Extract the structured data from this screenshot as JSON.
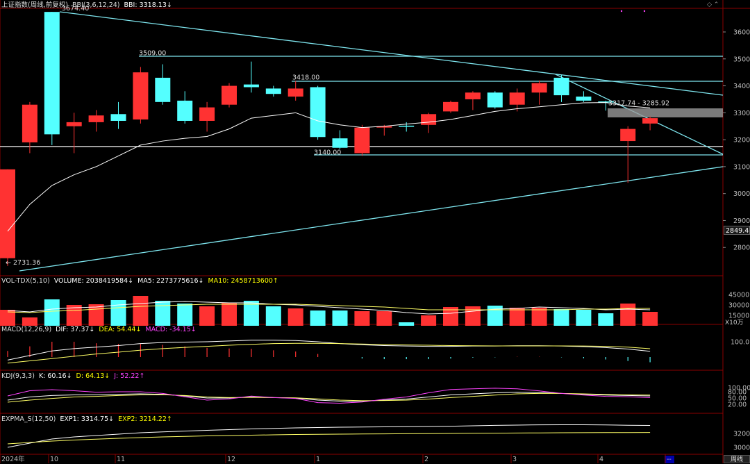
{
  "main_header": {
    "symbol": "上证指数(周线,前复权)",
    "indicator": "BBI(3,6,12,24)",
    "value": "BBI: 3318.13↓"
  },
  "vol_header": {
    "name": "VOL-TDX(5,10)",
    "volume": "VOLUME: 2038419584↓",
    "ma5": "MA5: 2273775616↓",
    "ma10": "MA10: 2458713600↑"
  },
  "macd_header": {
    "name": "MACD(12,26,9)",
    "dif": "DIF: 37.37↓",
    "dea": "DEA: 54.44↓",
    "macd": "MACD: -34.15↓"
  },
  "kdj_header": {
    "name": "KDJ(9,3,3)",
    "k": "K: 60.16↓",
    "d": "D: 64.13↓",
    "j": "J: 52.22↑"
  },
  "expma_header": {
    "name": "EXPMA_S(12,50)",
    "exp1": "EXP1: 3314.75↓",
    "exp2": "EXP2: 3214.22↑"
  },
  "last_price_tag": "2849.4",
  "vol_unit": "X10万",
  "period_button": "周线",
  "colors": {
    "up": "#ff3232",
    "down": "#54ffff",
    "bbi": "#ffffff",
    "trend": "#7fe7f0",
    "ma10": "#ffff66",
    "j": "#ff44ff",
    "grid": "#8b0000"
  },
  "chart_data": {
    "type": "candlestick",
    "price_axis": {
      "ticks": [
        3600,
        3500,
        3400,
        3300,
        3200,
        3100,
        3000,
        2900,
        2800
      ],
      "range": [
        2700,
        3700
      ]
    },
    "x_labels": [
      "2024年",
      "10",
      "11",
      "12",
      "1",
      "2",
      "3",
      "4",
      "--"
    ],
    "candles": [
      {
        "o": 2760,
        "c": 3090,
        "h": 3090,
        "l": 2731.36
      },
      {
        "o": 3190,
        "c": 3330,
        "h": 3340,
        "l": 3150
      },
      {
        "o": 3674.4,
        "c": 3220,
        "h": 3674.4,
        "l": 3180
      },
      {
        "o": 3250,
        "c": 3265,
        "h": 3300,
        "l": 3150
      },
      {
        "o": 3265,
        "c": 3290,
        "h": 3310,
        "l": 3230
      },
      {
        "o": 3295,
        "c": 3270,
        "h": 3340,
        "l": 3240
      },
      {
        "o": 3275,
        "c": 3450,
        "h": 3470,
        "l": 3260
      },
      {
        "o": 3430,
        "c": 3340,
        "h": 3480,
        "l": 3330
      },
      {
        "o": 3345,
        "c": 3270,
        "h": 3380,
        "l": 3260
      },
      {
        "o": 3270,
        "c": 3320,
        "h": 3340,
        "l": 3230
      },
      {
        "o": 3330,
        "c": 3400,
        "h": 3410,
        "l": 3320
      },
      {
        "o": 3405,
        "c": 3395,
        "h": 3490,
        "l": 3375
      },
      {
        "o": 3390,
        "c": 3370,
        "h": 3400,
        "l": 3360
      },
      {
        "o": 3360,
        "c": 3390,
        "h": 3418,
        "l": 3345
      },
      {
        "o": 3395,
        "c": 3210,
        "h": 3400,
        "l": 3200
      },
      {
        "o": 3205,
        "c": 3170,
        "h": 3235,
        "l": 3165
      },
      {
        "o": 3150,
        "c": 3245,
        "h": 3255,
        "l": 3140
      },
      {
        "o": 3245,
        "c": 3250,
        "h": 3255,
        "l": 3215
      },
      {
        "o": 3252,
        "c": 3248,
        "h": 3265,
        "l": 3230
      },
      {
        "o": 3255,
        "c": 3295,
        "h": 3300,
        "l": 3225
      },
      {
        "o": 3305,
        "c": 3340,
        "h": 3345,
        "l": 3300
      },
      {
        "o": 3350,
        "c": 3375,
        "h": 3380,
        "l": 3310
      },
      {
        "o": 3375,
        "c": 3320,
        "h": 3380,
        "l": 3315
      },
      {
        "o": 3330,
        "c": 3375,
        "h": 3390,
        "l": 3305
      },
      {
        "o": 3375,
        "c": 3410,
        "h": 3420,
        "l": 3330
      },
      {
        "o": 3430,
        "c": 3365,
        "h": 3440,
        "l": 3340
      },
      {
        "o": 3360,
        "c": 3345,
        "h": 3380,
        "l": 3340
      },
      {
        "o": 3342,
        "c": 3340,
        "h": 3345,
        "l": 3308
      },
      {
        "o": 3195,
        "c": 3240,
        "h": 3250,
        "l": 3040
      },
      {
        "o": 3260,
        "c": 3280,
        "h": 3285.92,
        "l": 3235
      }
    ],
    "bbi": [
      2860,
      2960,
      3030,
      3070,
      3100,
      3140,
      3180,
      3195,
      3205,
      3212,
      3240,
      3280,
      3290,
      3300,
      3270,
      3255,
      3245,
      3250,
      3258,
      3265,
      3275,
      3290,
      3305,
      3315,
      3322,
      3330,
      3337,
      3338,
      3325,
      3318.13
    ],
    "annotations": [
      {
        "text": "3674.40",
        "price": 3674.4
      },
      {
        "text": "3509.00",
        "price": 3509
      },
      {
        "text": "3418.00",
        "price": 3418
      },
      {
        "text": "3140.00",
        "price": 3140
      },
      {
        "text": "3317.74 - 3285.92",
        "price": 3317.74
      },
      {
        "text": "← 2731.36",
        "price": 2731.36
      }
    ],
    "volume": {
      "ticks": [
        "45000",
        "30000",
        "15000"
      ],
      "values": [
        23000,
        12000,
        38000,
        30000,
        31000,
        37000,
        43000,
        36000,
        32000,
        28000,
        33000,
        36000,
        28000,
        25000,
        22000,
        22000,
        21000,
        21000,
        5000,
        15000,
        27000,
        28000,
        29000,
        26000,
        26000,
        24000,
        23000,
        18000,
        32000,
        20000
      ],
      "ma5": [
        22000,
        20000,
        24000,
        26000,
        27000,
        30000,
        32000,
        34000,
        35000,
        34000,
        33000,
        33000,
        31000,
        30000,
        28000,
        26000,
        24000,
        22000,
        19000,
        17000,
        18000,
        21000,
        24000,
        25000,
        27000,
        26000,
        25000,
        23000,
        24000,
        23000
      ],
      "ma10": [
        20000,
        19000,
        21000,
        22000,
        24000,
        26000,
        28000,
        29000,
        30000,
        31000,
        31000,
        31000,
        31000,
        31000,
        30000,
        29000,
        28000,
        27000,
        25000,
        23000,
        23000,
        23000,
        23000,
        23000,
        23000,
        23000,
        24000,
        24000,
        25000,
        25000
      ]
    },
    "macd": {
      "ticks": [
        "100.0"
      ],
      "dif": [
        -20,
        10,
        40,
        55,
        65,
        75,
        88,
        95,
        98,
        100,
        105,
        110,
        110,
        108,
        100,
        88,
        80,
        75,
        72,
        70,
        70,
        72,
        72,
        74,
        74,
        72,
        68,
        62,
        52,
        37.37
      ],
      "dea": [
        -40,
        -25,
        -10,
        5,
        20,
        32,
        45,
        55,
        63,
        70,
        77,
        83,
        88,
        90,
        90,
        88,
        85,
        82,
        79,
        77,
        75,
        74,
        73,
        73,
        73,
        73,
        72,
        70,
        65,
        54.44
      ],
      "hist": [
        40,
        70,
        100,
        100,
        90,
        86,
        86,
        80,
        70,
        60,
        56,
        54,
        44,
        36,
        20,
        0,
        -10,
        -14,
        -14,
        -14,
        -10,
        -4,
        -2,
        2,
        2,
        -2,
        -8,
        -16,
        -26,
        -34.15
      ]
    },
    "kdj": {
      "ticks": [
        "100.00",
        "80.00",
        "50.00",
        "20.00"
      ],
      "k": [
        40,
        55,
        62,
        65,
        65,
        68,
        70,
        68,
        60,
        50,
        50,
        55,
        52,
        50,
        40,
        35,
        35,
        40,
        45,
        55,
        65,
        70,
        75,
        78,
        76,
        72,
        68,
        64,
        62,
        60.16
      ],
      "d": [
        30,
        40,
        48,
        55,
        58,
        62,
        65,
        66,
        62,
        55,
        52,
        53,
        52,
        51,
        46,
        40,
        37,
        38,
        40,
        45,
        52,
        58,
        64,
        70,
        72,
        72,
        70,
        67,
        65,
        64.13
      ],
      "j": [
        60,
        85,
        90,
        85,
        78,
        80,
        80,
        72,
        56,
        40,
        46,
        59,
        52,
        48,
        28,
        25,
        31,
        44,
        55,
        75,
        91,
        94,
        97,
        94,
        84,
        72,
        64,
        58,
        56,
        52.22
      ]
    },
    "expma": {
      "ticks": [
        "3200",
        "3000"
      ],
      "exp1": [
        3000,
        3060,
        3120,
        3150,
        3170,
        3190,
        3210,
        3222,
        3234,
        3245,
        3255,
        3265,
        3272,
        3280,
        3285,
        3290,
        3292,
        3295,
        3298,
        3300,
        3304,
        3310,
        3316,
        3320,
        3324,
        3325,
        3325,
        3322,
        3318,
        3314.75
      ],
      "exp2": [
        3050,
        3070,
        3090,
        3105,
        3118,
        3130,
        3140,
        3150,
        3158,
        3165,
        3170,
        3175,
        3180,
        3185,
        3188,
        3190,
        3192,
        3194,
        3196,
        3198,
        3200,
        3202,
        3204,
        3206,
        3208,
        3210,
        3211,
        3212,
        3213,
        3214.22
      ]
    }
  }
}
